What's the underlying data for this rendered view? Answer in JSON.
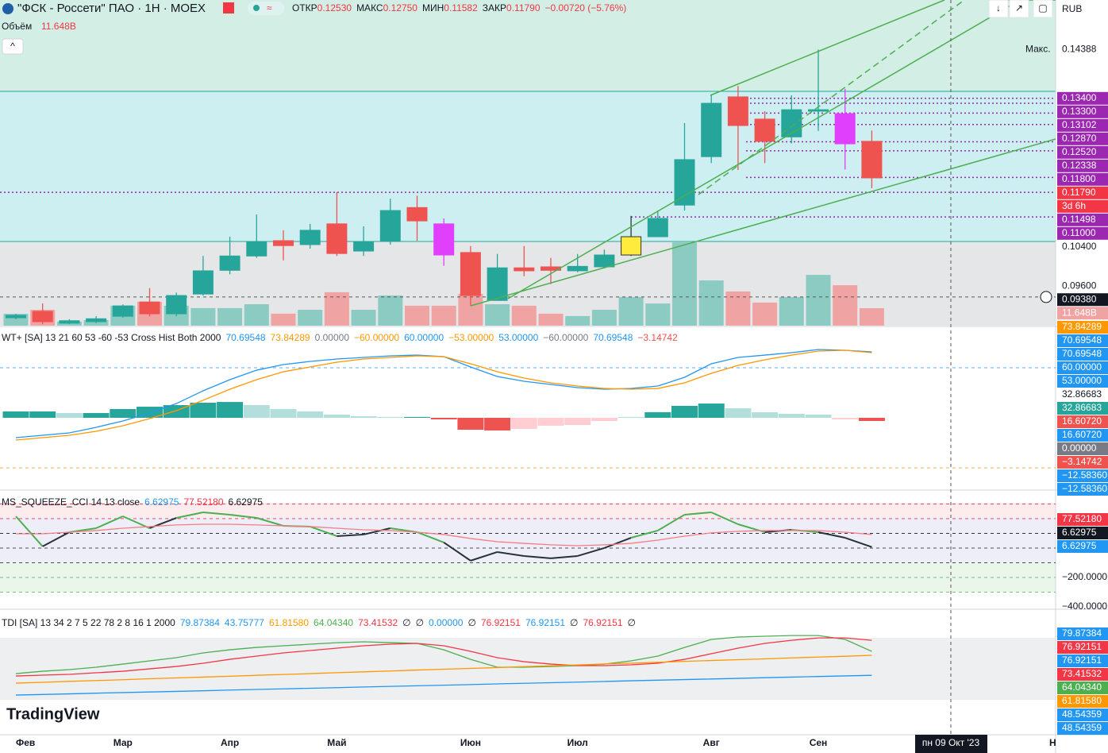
{
  "header": {
    "symbol": "\"ФСК - Россети\" ПАО · 1Н · MOEX",
    "ohlc": [
      {
        "name": "ОТКР",
        "value": "0.12530"
      },
      {
        "name": "МАКС",
        "value": "0.12750"
      },
      {
        "name": "МИН",
        "value": "0.11582"
      },
      {
        "name": "ЗАКР",
        "value": "0.11790"
      }
    ],
    "change": "−0.00720 (−5.76%)",
    "volume_title": "Объём",
    "volume_value": "11.648B",
    "currency": "RUB",
    "crosshair_date": "пн 09 Окт '23",
    "logo": "TradingView",
    "cut_month": "Н"
  },
  "chart_data": [
    {
      "type": "candlestick",
      "categories": [
        "Фев",
        null,
        null,
        null,
        "Мар",
        null,
        null,
        null,
        "Апр",
        null,
        null,
        null,
        "Май",
        null,
        null,
        null,
        null,
        "Июн",
        null,
        null,
        null,
        "Июл",
        null,
        null,
        null,
        null,
        "Авг",
        null,
        null,
        null,
        "Сен",
        null,
        null
      ],
      "open": [
        0.0896,
        0.0909,
        0.0885,
        0.0888,
        0.0899,
        0.0928,
        0.0904,
        0.0944,
        0.0992,
        0.1021,
        0.1052,
        0.1044,
        0.1086,
        0.1031,
        0.1052,
        0.1119,
        0.1086,
        0.1028,
        0.0931,
        0.0997,
        0.0999,
        0.0991,
        0.0999,
        0.1023,
        0.106,
        0.1124,
        0.1222,
        0.1343,
        0.1298,
        0.1262,
        0.1314,
        0.1309,
        0.1253
      ],
      "high": [
        0.0904,
        0.0925,
        0.0893,
        0.0899,
        0.0923,
        0.0956,
        0.0947,
        0.1021,
        0.106,
        0.1105,
        0.1073,
        0.1086,
        0.115,
        0.1081,
        0.1137,
        0.1143,
        0.1097,
        0.1041,
        0.1025,
        0.1041,
        0.1017,
        0.1025,
        0.1034,
        0.1102,
        0.1113,
        0.129,
        0.1346,
        0.1365,
        0.1314,
        0.1346,
        0.14388,
        0.1359,
        0.1275
      ],
      "low": [
        0.0893,
        0.0883,
        0.0883,
        0.0885,
        0.0896,
        0.0899,
        0.0899,
        0.0941,
        0.0984,
        0.1017,
        0.1012,
        0.1036,
        0.1021,
        0.1021,
        0.1044,
        0.1052,
        0.1001,
        0.092,
        0.0931,
        0.098,
        0.0964,
        0.0988,
        0.0996,
        0.1021,
        0.106,
        0.1113,
        0.1209,
        0.1195,
        0.1209,
        0.1249,
        0.1274,
        0.1196,
        0.11582
      ],
      "close": [
        0.0901,
        0.0888,
        0.089,
        0.0894,
        0.092,
        0.0904,
        0.0941,
        0.0991,
        0.1021,
        0.1049,
        0.1042,
        0.1073,
        0.1026,
        0.1049,
        0.1113,
        0.1092,
        0.1023,
        0.0941,
        0.0997,
        0.0991,
        0.0992,
        0.1,
        0.1023,
        0.106,
        0.1097,
        0.1216,
        0.133,
        0.1285,
        0.1253,
        0.1317,
        0.1317,
        0.1248,
        0.1179
      ],
      "colors": [
        "#26a69a",
        "#ef5350",
        "#26a69a",
        "#26a69a",
        "#26a69a",
        "#ef5350",
        "#26a69a",
        "#26a69a",
        "#26a69a",
        "#26a69a",
        "#ef5350",
        "#26a69a",
        "#ef5350",
        "#26a69a",
        "#26a69a",
        "#ef5350",
        "#e040fb",
        "#ef5350",
        "#26a69a",
        "#ef5350",
        "#ef5350",
        "#26a69a",
        "#26a69a",
        "#ffeb3b",
        "#26a69a",
        "#26a69a",
        "#26a69a",
        "#ef5350",
        "#ef5350",
        "#26a69a",
        "#26a69a",
        "#e040fb",
        "#ef5350"
      ],
      "ylim": [
        0.088,
        0.1539
      ],
      "yticks": [
        {
          "value": 0.104,
          "label": "0.10400"
        },
        {
          "value": 0.096,
          "label": "0.09600"
        }
      ],
      "levels": [
        {
          "value": 0.134,
          "label": "0.13400"
        },
        {
          "value": 0.133,
          "label": "0.13300"
        },
        {
          "value": 0.13102,
          "label": "0.13102"
        },
        {
          "value": 0.1287,
          "label": "0.12870"
        },
        {
          "value": 0.1252,
          "label": "0.12520"
        },
        {
          "value": 0.12338,
          "label": "0.12338"
        },
        {
          "value": 0.118,
          "label": "0.11800"
        },
        {
          "value": 0.11498,
          "label": "0.11498"
        },
        {
          "value": 0.11,
          "label": "0.11000"
        }
      ],
      "level_color": "#9c27b0",
      "last_label": "0.11790",
      "countdown": "3d 6h",
      "max_name": "Макс.",
      "max_label": "0.14388",
      "crosshair": {
        "value": 0.0938,
        "label": "0.09380"
      },
      "volume": {
        "values": [
          7.9,
          10.6,
          2.7,
          3.7,
          13.3,
          15.9,
          13.3,
          11.7,
          11.7,
          14.3,
          8,
          10.6,
          22.3,
          10.6,
          20.1,
          13.3,
          13.3,
          21.2,
          14.3,
          13.3,
          8,
          6.4,
          10.6,
          19.1,
          14.8,
          55.6,
          30.2,
          22.8,
          15.4,
          19.1,
          33.9,
          27,
          11.648
        ],
        "ylim": [
          0,
          217.3
        ],
        "last_label": "11.648B",
        "up_color": "#8ccbc2",
        "down_color": "#f0a3a3"
      }
    },
    {
      "type": "line",
      "title": "WT+ [SA] 13 21 60 53 -60 -53 Cross Hist Both 2000",
      "legend_values": [
        {
          "text": "70.69548",
          "color": "#2196f3"
        },
        {
          "text": "73.84289",
          "color": "#ff9800"
        },
        {
          "text": "0.00000",
          "color": "#787b86"
        },
        {
          "text": "−60.00000",
          "color": "#ff9800"
        },
        {
          "text": "60.00000",
          "color": "#2196f3"
        },
        {
          "text": "−53.00000",
          "color": "#ff9800"
        },
        {
          "text": "53.00000",
          "color": "#2196f3"
        },
        {
          "text": "−60.00000",
          "color": "#787b86"
        },
        {
          "text": "70.69548",
          "color": "#2196f3"
        },
        {
          "text": "−3.14742",
          "color": "#ef5350"
        }
      ],
      "series": [
        {
          "color": "#2196f3",
          "values": [
            -23.8,
            -21,
            -18.1,
            -11.4,
            -3.8,
            5.7,
            17.1,
            32.4,
            45.7,
            57.1,
            63.8,
            67.6,
            70.5,
            72.4,
            74.3,
            75.2,
            73.3,
            61,
            49.5,
            43.8,
            40,
            36.2,
            34.3,
            35.2,
            38.1,
            48.6,
            64.8,
            72.4,
            75.2,
            78.1,
            81.9,
            81,
            79
          ]
        },
        {
          "color": "#ff9800",
          "values": [
            -26.7,
            -23.8,
            -21,
            -16.2,
            -9.5,
            -1,
            8.6,
            21,
            34.3,
            45.7,
            55.2,
            61,
            66.7,
            70.5,
            72.4,
            74.3,
            73.3,
            64.8,
            55.2,
            47.6,
            41.9,
            38.1,
            35.2,
            34.3,
            35.2,
            41.9,
            53.3,
            62.9,
            69.5,
            75.2,
            80,
            81,
            78.1
          ]
        }
      ],
      "histogram": {
        "values": [
          7.6,
          7.6,
          5.7,
          5.7,
          10.5,
          13.3,
          15.2,
          18.1,
          19,
          15.2,
          10.5,
          7.6,
          3.8,
          1.9,
          1,
          1,
          -1.9,
          -14.3,
          -15.2,
          -13.3,
          -9.5,
          -8.6,
          -3.8,
          1,
          6.7,
          14.3,
          17.1,
          11.4,
          6.7,
          4.8,
          3.8,
          -1.9,
          -3.8
        ],
        "pos_color": "#26a69a",
        "pos_fade_color": "#b2dfdb",
        "neg_color": "#ef5350",
        "neg_fade_color": "#ffcdd2"
      },
      "ylim": [
        -84.8,
        108.6
      ],
      "levels": [
        {
          "value": 60,
          "color": "#2196f3"
        },
        {
          "value": -60,
          "color": "#ff9800"
        }
      ],
      "axis_labels": [
        {
          "label": "73.84289",
          "bg": "#ff9800"
        },
        {
          "label": "70.69548",
          "bg": "#2196f3"
        },
        {
          "label": "70.69548",
          "bg": "#2196f3"
        },
        {
          "label": "60.00000",
          "bg": "#2196f3"
        },
        {
          "label": "53.00000",
          "bg": "#2196f3"
        },
        {
          "label": "32.86683",
          "bg": null
        },
        {
          "label": "32.86683",
          "bg": "#26a69a"
        },
        {
          "label": "16.60720",
          "bg": "#ef5350"
        },
        {
          "label": "16.60720",
          "bg": "#2196f3"
        },
        {
          "label": "0.00000",
          "bg": "#787b86"
        },
        {
          "label": "−3.14742",
          "bg": "#ef5350"
        },
        {
          "label": "−12.58360",
          "bg": "#2196f3"
        },
        {
          "label": "−12.58360",
          "bg": "#2196f3"
        }
      ]
    },
    {
      "type": "line",
      "title": "MS_SQUEEZE_CCI 14 13 close",
      "legend_values": [
        {
          "text": "6.62975",
          "color": "#2196f3"
        },
        {
          "text": "77.52180",
          "color": "#f23645"
        },
        {
          "text": "6.62975",
          "color": "#131722"
        }
      ],
      "series": [
        {
          "color": "#4caf50",
          "color_below": "#263238",
          "values": [
            216,
            11,
            108,
            135,
            216,
            135,
            205,
            243,
            227,
            205,
            151,
            146,
            81,
            92,
            135,
            108,
            38,
            -86,
            -27,
            -54,
            -70,
            -54,
            0,
            70,
            119,
            227,
            243,
            162,
            108,
            124,
            108,
            70,
            7
          ]
        },
        {
          "color": "#f77c80",
          "values": [
            97,
            97,
            108,
            119,
            135,
            146,
            157,
            162,
            162,
            157,
            151,
            146,
            135,
            124,
            119,
            108,
            92,
            65,
            43,
            32,
            22,
            16,
            22,
            32,
            54,
            81,
            103,
            114,
            119,
            119,
            119,
            108,
            92
          ]
        }
      ],
      "ylim": [
        -400,
        378
      ],
      "levels": [
        {
          "value": 300,
          "color": "#f23645"
        },
        {
          "value": 200,
          "color": "#f23645"
        },
        {
          "value": 100,
          "color": "#131722"
        },
        {
          "value": 0,
          "color": "#131722"
        },
        {
          "value": -100,
          "color": "#131722"
        },
        {
          "value": -200,
          "color": "#4caf50"
        },
        {
          "value": -300,
          "color": "#4caf50"
        }
      ],
      "yticks": [
        {
          "value": -200,
          "label": "−200.0000"
        },
        {
          "value": -400,
          "label": "−400.0000"
        }
      ],
      "axis_labels": [
        {
          "label": "77.52180",
          "bg": "#f23645"
        },
        {
          "label": "6.62975",
          "bg": "#131722"
        },
        {
          "label": "6.62975",
          "bg": "#2196f3"
        }
      ]
    },
    {
      "type": "line",
      "title": "TDI [SA] 13 34 2 7 5 22 78 2 8 16 1 2000",
      "legend_values": [
        {
          "text": "79.87384",
          "color": "#2196f3"
        },
        {
          "text": "43.75777",
          "color": "#2196f3"
        },
        {
          "text": "61.81580",
          "color": "#ff9800"
        },
        {
          "text": "64.04340",
          "color": "#4caf50"
        },
        {
          "text": "73.41532",
          "color": "#f23645"
        },
        {
          "text": "∅",
          "color": "#131722"
        },
        {
          "text": "∅",
          "color": "#131722"
        },
        {
          "text": "0.00000",
          "color": "#2196f3"
        },
        {
          "text": "∅",
          "color": "#131722"
        },
        {
          "text": "76.92151",
          "color": "#f23645"
        },
        {
          "text": "76.92151",
          "color": "#2196f3"
        },
        {
          "text": "∅",
          "color": "#131722"
        },
        {
          "text": "76.92151",
          "color": "#f23645"
        },
        {
          "text": "∅",
          "color": "#131722"
        }
      ],
      "series": [
        {
          "color": "#4caf50",
          "values": [
            51.3,
            53.3,
            54.7,
            56.7,
            59.3,
            62,
            64.7,
            68.7,
            71.3,
            73.3,
            74.7,
            76,
            77.3,
            78,
            77.3,
            76.7,
            71.3,
            63.3,
            56.7,
            56.7,
            57.3,
            58,
            59.3,
            62,
            66,
            73.3,
            80,
            82,
            82.7,
            83.3,
            83.3,
            80,
            70
          ]
        },
        {
          "color": "#f23645",
          "values": [
            49.3,
            50,
            50.7,
            52,
            53.3,
            55.3,
            57.3,
            60,
            63.3,
            66,
            68.7,
            70.7,
            72.7,
            74.7,
            76,
            76.7,
            74.7,
            70,
            64.7,
            61.3,
            59.3,
            58,
            58,
            58.7,
            60,
            63.3,
            68,
            72.7,
            76.7,
            79.3,
            81.3,
            81.3,
            79.3
          ]
        },
        {
          "color": "#ff9800",
          "values": [
            43.3,
            44,
            44.8,
            45.5,
            46.2,
            47,
            47.7,
            48.4,
            49.1,
            49.9,
            50.6,
            51.3,
            52.1,
            52.8,
            53.5,
            54.3,
            55,
            55.7,
            56.4,
            57.2,
            57.9,
            58.6,
            59.4,
            60.1,
            60.8,
            61.6,
            62.3,
            63,
            63.7,
            64.5,
            65.2,
            65.9,
            66.7
          ]
        },
        {
          "color": "#2196f3",
          "values": [
            33.3,
            33.8,
            34.3,
            34.9,
            35.4,
            35.9,
            36.4,
            36.9,
            37.5,
            38,
            38.5,
            39,
            39.5,
            40.1,
            40.6,
            41.1,
            41.6,
            42.1,
            42.7,
            43.2,
            43.7,
            44.2,
            44.7,
            45.3,
            45.8,
            46.3,
            46.8,
            47.3,
            47.9,
            48.4,
            48.9,
            49.4,
            49.9
          ]
        }
      ],
      "ylim": [
        0,
        104.7
      ],
      "axis_labels": [
        {
          "label": "79.87384",
          "bg": "#2196f3"
        },
        {
          "label": "76.92151",
          "bg": "#f23645"
        },
        {
          "label": "76.92151",
          "bg": "#2196f3"
        },
        {
          "label": "73.41532",
          "bg": "#f23645"
        },
        {
          "label": "64.04340",
          "bg": "#4caf50"
        },
        {
          "label": "61.81580",
          "bg": "#ff9800"
        },
        {
          "label": "48.54359",
          "bg": "#2196f3"
        },
        {
          "label": "48.54359",
          "bg": "#2196f3"
        }
      ]
    }
  ]
}
